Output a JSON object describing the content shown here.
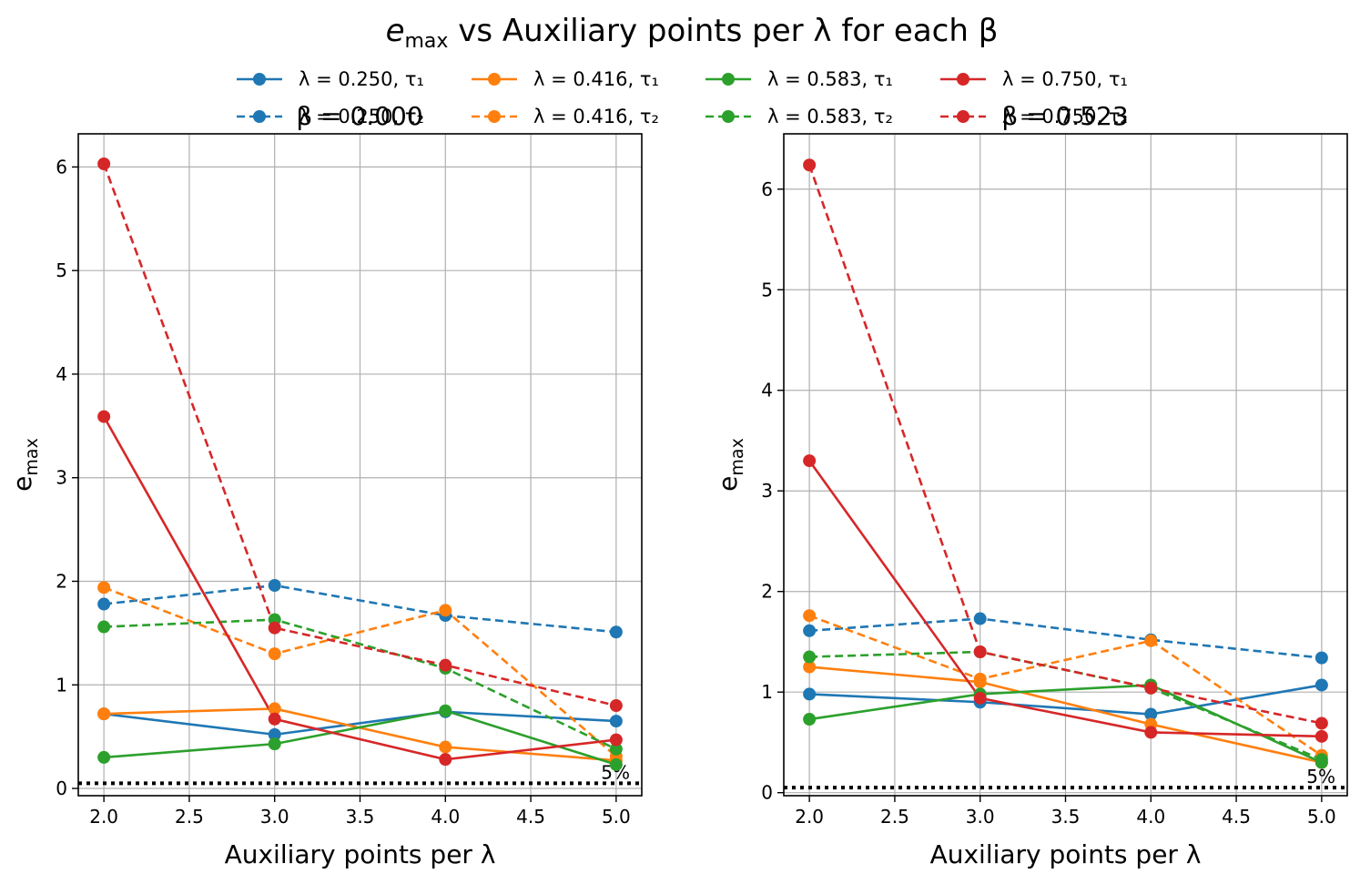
{
  "figure": {
    "title_prefix": "e",
    "title_sub": "max",
    "title_rest": " vs Auxiliary points per λ for each β"
  },
  "legend": {
    "entries": [
      {
        "label": "λ = 0.250, τ₁",
        "color": "#1f77b4",
        "dash": false
      },
      {
        "label": "λ = 0.250, τ₂",
        "color": "#1f77b4",
        "dash": true
      },
      {
        "label": "λ = 0.416, τ₁",
        "color": "#ff7f0e",
        "dash": false
      },
      {
        "label": "λ = 0.416, τ₂",
        "color": "#ff7f0e",
        "dash": true
      },
      {
        "label": "λ = 0.583, τ₁",
        "color": "#2ca02c",
        "dash": false
      },
      {
        "label": "λ = 0.583, τ₂",
        "color": "#2ca02c",
        "dash": true
      },
      {
        "label": "λ = 0.750, τ₁",
        "color": "#d62728",
        "dash": false
      },
      {
        "label": "λ = 0.750, τ₂",
        "color": "#d62728",
        "dash": true
      }
    ]
  },
  "chart_data": [
    {
      "type": "line",
      "title": "β = 0.000",
      "xlabel": "Auxiliary points per λ",
      "ylabel_main": "e",
      "ylabel_sub": "max",
      "x": [
        2.0,
        3.0,
        4.0,
        5.0
      ],
      "xlim": [
        1.85,
        5.15
      ],
      "ylim": [
        -0.07,
        6.32
      ],
      "xticks": [
        "2.0",
        "2.5",
        "3.0",
        "3.5",
        "4.0",
        "4.5",
        "5.0"
      ],
      "yticks": [
        "0",
        "1",
        "2",
        "3",
        "4",
        "5",
        "6"
      ],
      "grid": true,
      "reference": {
        "y": 0.05,
        "label": "5%"
      },
      "series": [
        {
          "name": "λ = 0.250, τ₁",
          "color": "#1f77b4",
          "dash": false,
          "values": [
            0.72,
            0.52,
            0.74,
            0.65
          ]
        },
        {
          "name": "λ = 0.250, τ₂",
          "color": "#1f77b4",
          "dash": true,
          "values": [
            1.78,
            1.96,
            1.67,
            1.51
          ]
        },
        {
          "name": "λ = 0.416, τ₁",
          "color": "#ff7f0e",
          "dash": false,
          "values": [
            0.72,
            0.77,
            0.4,
            0.27
          ]
        },
        {
          "name": "λ = 0.416, τ₂",
          "color": "#ff7f0e",
          "dash": true,
          "values": [
            1.94,
            1.3,
            1.72,
            0.31
          ]
        },
        {
          "name": "λ = 0.583, τ₁",
          "color": "#2ca02c",
          "dash": false,
          "values": [
            0.3,
            0.43,
            0.75,
            0.23
          ]
        },
        {
          "name": "λ = 0.583, τ₂",
          "color": "#2ca02c",
          "dash": true,
          "values": [
            1.56,
            1.63,
            1.16,
            0.38
          ]
        },
        {
          "name": "λ = 0.750, τ₁",
          "color": "#d62728",
          "dash": false,
          "values": [
            3.59,
            0.67,
            0.28,
            0.47
          ]
        },
        {
          "name": "λ = 0.750, τ₂",
          "color": "#d62728",
          "dash": true,
          "values": [
            6.03,
            1.55,
            1.19,
            0.8
          ]
        }
      ]
    },
    {
      "type": "line",
      "title": "β = 0.523",
      "xlabel": "Auxiliary points per λ",
      "ylabel_main": "e",
      "ylabel_sub": "max",
      "x": [
        2.0,
        3.0,
        4.0,
        5.0
      ],
      "xlim": [
        1.85,
        5.15
      ],
      "ylim": [
        -0.03,
        6.55
      ],
      "xticks": [
        "2.0",
        "2.5",
        "3.0",
        "3.5",
        "4.0",
        "4.5",
        "5.0"
      ],
      "yticks": [
        "0",
        "1",
        "2",
        "3",
        "4",
        "5",
        "6"
      ],
      "grid": true,
      "reference": {
        "y": 0.05,
        "label": "5%"
      },
      "series": [
        {
          "name": "λ = 0.250, τ₁",
          "color": "#1f77b4",
          "dash": false,
          "values": [
            0.98,
            0.9,
            0.78,
            1.07
          ]
        },
        {
          "name": "λ = 0.250, τ₂",
          "color": "#1f77b4",
          "dash": true,
          "values": [
            1.61,
            1.73,
            1.52,
            1.34
          ]
        },
        {
          "name": "λ = 0.416, τ₁",
          "color": "#ff7f0e",
          "dash": false,
          "values": [
            1.25,
            1.1,
            0.68,
            0.3
          ]
        },
        {
          "name": "λ = 0.416, τ₂",
          "color": "#ff7f0e",
          "dash": true,
          "values": [
            1.76,
            1.13,
            1.51,
            0.37
          ]
        },
        {
          "name": "λ = 0.583, τ₁",
          "color": "#2ca02c",
          "dash": false,
          "values": [
            0.73,
            0.98,
            1.07,
            0.3
          ]
        },
        {
          "name": "λ = 0.583, τ₂",
          "color": "#2ca02c",
          "dash": true,
          "values": [
            1.35,
            1.4,
            1.04,
            0.33
          ]
        },
        {
          "name": "λ = 0.750, τ₁",
          "color": "#d62728",
          "dash": false,
          "values": [
            3.3,
            0.94,
            0.6,
            0.56
          ]
        },
        {
          "name": "λ = 0.750, τ₂",
          "color": "#d62728",
          "dash": true,
          "values": [
            6.24,
            1.4,
            1.04,
            0.69
          ]
        }
      ]
    }
  ]
}
